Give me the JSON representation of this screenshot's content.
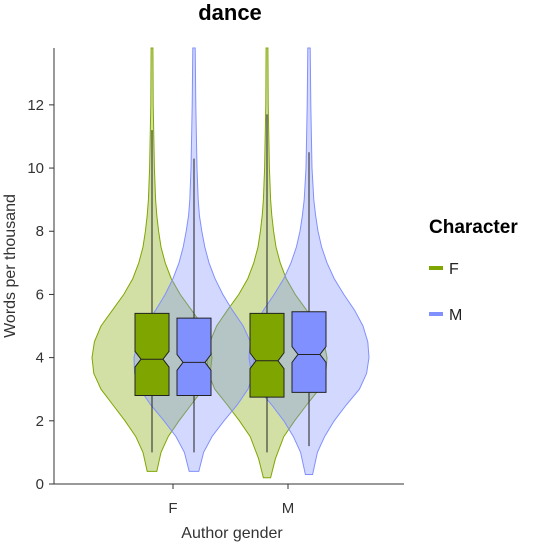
{
  "chart_data": {
    "type": "violin",
    "title": "dance",
    "xlabel": "Author gender",
    "ylabel": "Words per thousand",
    "categories": [
      "F",
      "M"
    ],
    "ylim": [
      0,
      13.8
    ],
    "yticks": [
      0,
      2,
      4,
      6,
      8,
      10,
      12
    ],
    "legend": {
      "title": "Character",
      "placement": "right"
    },
    "series": [
      {
        "name": "F",
        "color": "#7fa600",
        "groups": [
          {
            "category": "F",
            "min": 1.0,
            "q1": 2.8,
            "median": 3.95,
            "q3": 5.4,
            "max": 11.2,
            "notch": [
              3.7,
              4.2
            ],
            "density": [
              [
                0.4,
                0.08
              ],
              [
                1.0,
                0.15
              ],
              [
                1.5,
                0.27
              ],
              [
                2.0,
                0.45
              ],
              [
                2.5,
                0.65
              ],
              [
                3.0,
                0.85
              ],
              [
                3.5,
                0.97
              ],
              [
                4.0,
                1.0
              ],
              [
                4.5,
                0.96
              ],
              [
                5.0,
                0.85
              ],
              [
                5.5,
                0.66
              ],
              [
                6.0,
                0.47
              ],
              [
                6.5,
                0.32
              ],
              [
                7.0,
                0.22
              ],
              [
                7.5,
                0.15
              ],
              [
                8.0,
                0.11
              ],
              [
                8.5,
                0.08
              ],
              [
                9.0,
                0.06
              ],
              [
                10.0,
                0.04
              ],
              [
                11.0,
                0.03
              ],
              [
                12.0,
                0.02
              ],
              [
                13.8,
                0.015
              ]
            ]
          },
          {
            "category": "M",
            "min": 1.0,
            "q1": 2.75,
            "median": 3.9,
            "q3": 5.4,
            "max": 11.7,
            "notch": [
              3.65,
              4.15
            ],
            "density": [
              [
                0.2,
                0.06
              ],
              [
                0.8,
                0.14
              ],
              [
                1.5,
                0.28
              ],
              [
                2.0,
                0.46
              ],
              [
                2.5,
                0.66
              ],
              [
                3.0,
                0.87
              ],
              [
                3.5,
                0.98
              ],
              [
                4.0,
                1.0
              ],
              [
                4.5,
                0.95
              ],
              [
                5.0,
                0.84
              ],
              [
                5.5,
                0.66
              ],
              [
                6.0,
                0.47
              ],
              [
                6.5,
                0.32
              ],
              [
                7.0,
                0.22
              ],
              [
                7.5,
                0.15
              ],
              [
                8.0,
                0.11
              ],
              [
                8.5,
                0.08
              ],
              [
                9.0,
                0.06
              ],
              [
                10.0,
                0.04
              ],
              [
                11.0,
                0.03
              ],
              [
                12.0,
                0.02
              ],
              [
                13.8,
                0.015
              ]
            ]
          }
        ]
      },
      {
        "name": "M",
        "color": "#8090ff",
        "groups": [
          {
            "category": "F",
            "min": 1.0,
            "q1": 2.8,
            "median": 3.85,
            "q3": 5.25,
            "max": 10.3,
            "notch": [
              3.6,
              4.1
            ],
            "density": [
              [
                0.4,
                0.08
              ],
              [
                1.0,
                0.16
              ],
              [
                1.5,
                0.3
              ],
              [
                2.0,
                0.5
              ],
              [
                2.5,
                0.72
              ],
              [
                3.0,
                0.9
              ],
              [
                3.5,
                0.99
              ],
              [
                4.0,
                1.0
              ],
              [
                4.5,
                0.94
              ],
              [
                5.0,
                0.82
              ],
              [
                5.5,
                0.64
              ],
              [
                6.0,
                0.48
              ],
              [
                6.5,
                0.35
              ],
              [
                7.0,
                0.25
              ],
              [
                7.5,
                0.18
              ],
              [
                8.0,
                0.13
              ],
              [
                8.5,
                0.09
              ],
              [
                9.0,
                0.07
              ],
              [
                10.0,
                0.05
              ],
              [
                11.0,
                0.04
              ],
              [
                12.0,
                0.03
              ],
              [
                13.8,
                0.02
              ]
            ]
          },
          {
            "category": "M",
            "min": 1.2,
            "q1": 2.9,
            "median": 4.1,
            "q3": 5.45,
            "max": 10.5,
            "notch": [
              3.85,
              4.35
            ],
            "density": [
              [
                0.3,
                0.06
              ],
              [
                1.0,
                0.14
              ],
              [
                1.5,
                0.26
              ],
              [
                2.0,
                0.42
              ],
              [
                2.5,
                0.62
              ],
              [
                3.0,
                0.84
              ],
              [
                3.5,
                0.96
              ],
              [
                4.0,
                1.0
              ],
              [
                4.5,
                0.98
              ],
              [
                5.0,
                0.9
              ],
              [
                5.5,
                0.76
              ],
              [
                6.0,
                0.58
              ],
              [
                6.5,
                0.42
              ],
              [
                7.0,
                0.3
              ],
              [
                7.5,
                0.21
              ],
              [
                8.0,
                0.15
              ],
              [
                8.5,
                0.11
              ],
              [
                9.0,
                0.08
              ],
              [
                10.0,
                0.05
              ],
              [
                11.0,
                0.04
              ],
              [
                12.0,
                0.03
              ],
              [
                13.8,
                0.02
              ]
            ]
          }
        ]
      }
    ]
  }
}
